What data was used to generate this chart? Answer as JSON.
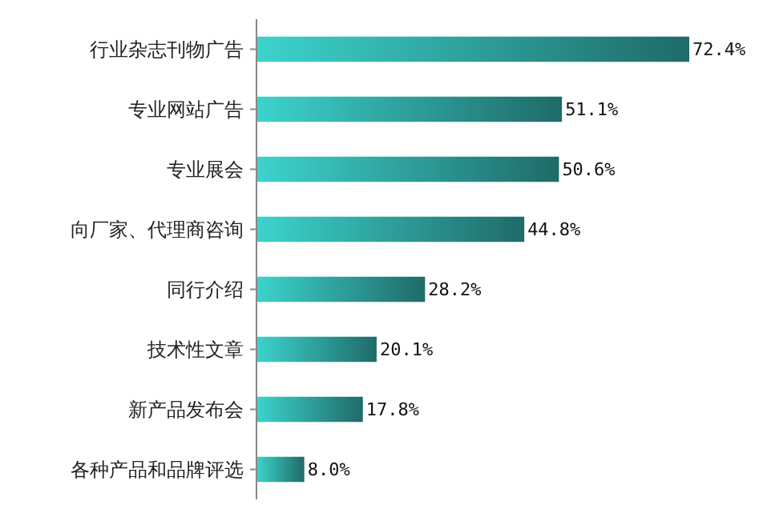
{
  "chart_data": {
    "type": "bar",
    "orientation": "horizontal",
    "relative": false,
    "categories": [
      "行业杂志刊物广告",
      "专业网站广告",
      "专业展会",
      "向厂家、代理商咨询",
      "同行介绍",
      "技术性文章",
      "新产品发布会",
      "各种产品和品牌评选"
    ],
    "values": [
      72.4,
      51.1,
      50.6,
      44.8,
      28.2,
      20.1,
      17.8,
      8.0
    ],
    "value_labels": [
      "72.4%",
      "51.1%",
      "50.6%",
      "44.8%",
      "28.2%",
      "20.1%",
      "17.8%",
      "8.0%"
    ],
    "color": "#3dd3cd"
  }
}
